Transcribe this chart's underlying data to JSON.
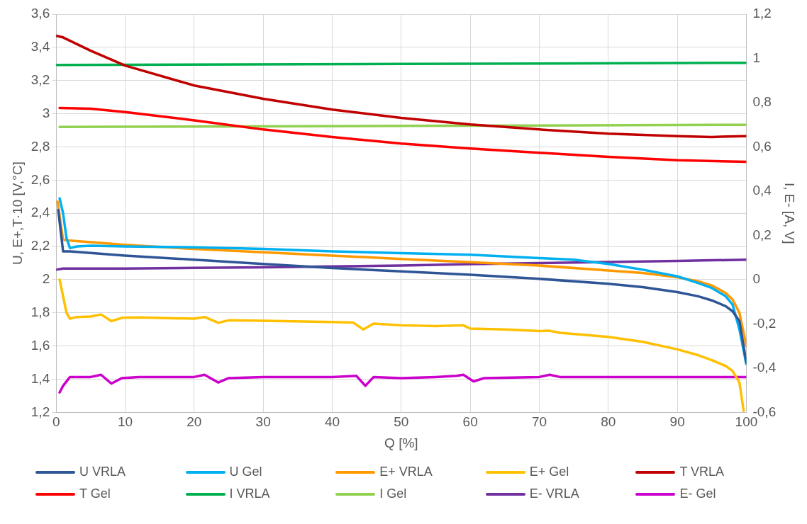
{
  "chart_data": {
    "type": "line",
    "xlabel": "Q [%]",
    "ylabel": "U, E+,T·10 [V,°C]",
    "y2label": "I, E- [A, V]",
    "xlim": [
      0,
      100
    ],
    "xticks": [
      0,
      10,
      20,
      30,
      40,
      50,
      60,
      70,
      80,
      90,
      100
    ],
    "ylim": [
      1.2,
      3.6
    ],
    "yticks": [
      {
        "value": 1.2,
        "label": "1,2"
      },
      {
        "value": 1.4,
        "label": "1,4"
      },
      {
        "value": 1.6,
        "label": "1,6"
      },
      {
        "value": 1.8,
        "label": "1,8"
      },
      {
        "value": 2,
        "label": "2"
      },
      {
        "value": 2.2,
        "label": "2,2"
      },
      {
        "value": 2.4,
        "label": "2,4"
      },
      {
        "value": 2.6,
        "label": "2,6"
      },
      {
        "value": 2.8,
        "label": "2,8"
      },
      {
        "value": 3,
        "label": "3"
      },
      {
        "value": 3.2,
        "label": "3,2"
      },
      {
        "value": 3.4,
        "label": "3,4"
      },
      {
        "value": 3.6,
        "label": "3,6"
      }
    ],
    "y2lim": [
      -0.6,
      1.2
    ],
    "y2ticks": [
      {
        "value": -0.6,
        "label": "-0,6"
      },
      {
        "value": -0.4,
        "label": "-0,4"
      },
      {
        "value": -0.2,
        "label": "-0,2"
      },
      {
        "value": 0,
        "label": "0"
      },
      {
        "value": 0.2,
        "label": "0,2"
      },
      {
        "value": 0.4,
        "label": "0,4"
      },
      {
        "value": 0.6,
        "label": "0,6"
      },
      {
        "value": 0.8,
        "label": "0,8"
      },
      {
        "value": 1,
        "label": "1"
      },
      {
        "value": 1.2,
        "label": "1,2"
      }
    ],
    "grid": true,
    "legend": "bottom",
    "marker": "none",
    "line_style": "solid",
    "series": [
      {
        "name": "U VRLA",
        "color": "#2f5597",
        "x": [
          0.3,
          1,
          2,
          10,
          20,
          30,
          40,
          50,
          60,
          70,
          80,
          85,
          90,
          93,
          95,
          97,
          98,
          99,
          100
        ],
        "values": [
          2.42,
          2.17,
          2.17,
          2.145,
          2.12,
          2.095,
          2.07,
          2.05,
          2.03,
          2.005,
          1.975,
          1.955,
          1.925,
          1.9,
          1.875,
          1.84,
          1.81,
          1.75,
          1.5
        ]
      },
      {
        "name": "U Gel",
        "color": "#00b0f0",
        "x": [
          0.5,
          1,
          1.5,
          2,
          3,
          5,
          10,
          20,
          30,
          40,
          50,
          60,
          70,
          75,
          80,
          85,
          90,
          93,
          95,
          97,
          98,
          99,
          100
        ],
        "values": [
          2.49,
          2.4,
          2.25,
          2.19,
          2.2,
          2.205,
          2.2,
          2.195,
          2.185,
          2.17,
          2.16,
          2.15,
          2.13,
          2.12,
          2.095,
          2.06,
          2.02,
          1.98,
          1.95,
          1.9,
          1.85,
          1.7,
          1.49
        ]
      },
      {
        "name": "E+ VRLA",
        "color": "#ff9900",
        "x": [
          0.2,
          1,
          2,
          10,
          20,
          30,
          40,
          50,
          60,
          70,
          80,
          85,
          90,
          93,
          95,
          97,
          98,
          99,
          100
        ],
        "values": [
          2.47,
          2.24,
          2.235,
          2.21,
          2.185,
          2.165,
          2.145,
          2.125,
          2.105,
          2.085,
          2.055,
          2.04,
          2.015,
          1.99,
          1.965,
          1.92,
          1.88,
          1.8,
          1.6
        ]
      },
      {
        "name": "E+ Gel",
        "color": "#ffc000",
        "x": [
          0.5,
          1,
          1.5,
          2,
          3,
          5,
          6.5,
          8,
          9.5,
          12,
          20,
          21.5,
          23.5,
          25,
          30,
          40,
          43,
          44.5,
          46,
          50,
          55,
          59,
          60,
          65,
          70,
          71.5,
          73,
          80,
          85,
          90,
          93,
          95,
          97,
          98,
          99,
          99.6
        ],
        "values": [
          2.0,
          1.9,
          1.8,
          1.765,
          1.775,
          1.778,
          1.79,
          1.75,
          1.77,
          1.772,
          1.765,
          1.775,
          1.74,
          1.755,
          1.752,
          1.745,
          1.742,
          1.7,
          1.735,
          1.725,
          1.72,
          1.725,
          1.705,
          1.7,
          1.69,
          1.692,
          1.68,
          1.655,
          1.625,
          1.58,
          1.545,
          1.515,
          1.48,
          1.45,
          1.38,
          1.21
        ]
      },
      {
        "name": "T VRLA",
        "color": "#c00000",
        "x": [
          0,
          1,
          5,
          10,
          20,
          30,
          40,
          50,
          60,
          70,
          80,
          90,
          95,
          100
        ],
        "values": [
          3.47,
          3.46,
          3.38,
          3.29,
          3.17,
          3.09,
          3.025,
          2.975,
          2.935,
          2.905,
          2.88,
          2.865,
          2.86,
          2.865
        ]
      },
      {
        "name": "T Gel",
        "color": "#ff0000",
        "x": [
          0.5,
          5,
          10,
          20,
          30,
          40,
          50,
          60,
          70,
          80,
          90,
          100
        ],
        "values": [
          3.035,
          3.03,
          3.01,
          2.96,
          2.905,
          2.86,
          2.82,
          2.79,
          2.765,
          2.74,
          2.72,
          2.71
        ]
      },
      {
        "name": "I VRLA",
        "color": "#00b050",
        "axis": "y2",
        "x": [
          0,
          50,
          100
        ],
        "values": [
          0.97,
          0.975,
          0.98
        ]
      },
      {
        "name": "I Gel",
        "color": "#92d050",
        "axis": "y2",
        "x": [
          0.5,
          50,
          100
        ],
        "values": [
          0.69,
          0.695,
          0.7
        ]
      },
      {
        "name": "E- VRLA",
        "color": "#7030a0",
        "axis": "y2",
        "x": [
          0,
          1,
          10,
          20,
          30,
          40,
          50,
          60,
          70,
          80,
          90,
          100
        ],
        "values": [
          0.045,
          0.05,
          0.05,
          0.053,
          0.056,
          0.06,
          0.064,
          0.07,
          0.075,
          0.08,
          0.085,
          0.09
        ]
      },
      {
        "name": "E- Gel",
        "color": "#cc00cc",
        "axis": "y2",
        "x": [
          0.5,
          1,
          2,
          3,
          5,
          6.5,
          8,
          9.5,
          12,
          20,
          21.5,
          23.5,
          25,
          30,
          40,
          43.5,
          44.8,
          46,
          50,
          55,
          58,
          59,
          60.5,
          62,
          70,
          71.5,
          73,
          80,
          90,
          100
        ],
        "values": [
          -0.51,
          -0.48,
          -0.44,
          -0.44,
          -0.44,
          -0.43,
          -0.47,
          -0.445,
          -0.44,
          -0.44,
          -0.43,
          -0.465,
          -0.445,
          -0.44,
          -0.44,
          -0.435,
          -0.48,
          -0.44,
          -0.445,
          -0.44,
          -0.435,
          -0.43,
          -0.46,
          -0.445,
          -0.44,
          -0.43,
          -0.44,
          -0.44,
          -0.44,
          -0.44
        ]
      }
    ]
  }
}
